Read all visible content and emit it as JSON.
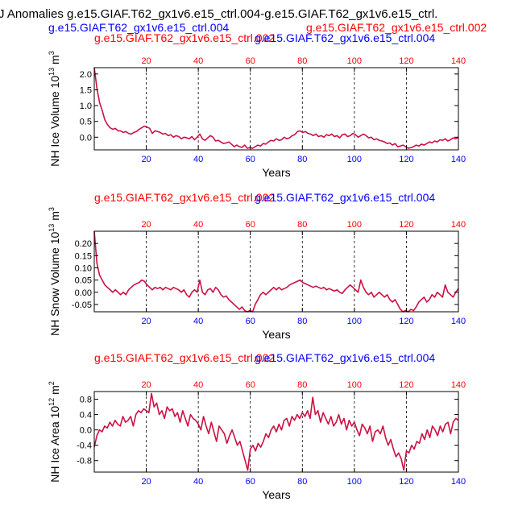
{
  "figure_title": "J Anomalies g.e15.GIAF.T62_gx1v6.e15_ctrl.004-g.e15.GIAF.T62_gx1v6.e15_ctrl.",
  "colors": {
    "blue_run": "#0000ff",
    "red_run": "#ff0000",
    "line": "#cc1144",
    "grid": "#000000"
  },
  "chart_data": [
    {
      "type": "line",
      "ylabel": "NH Ice Volume 10",
      "ylabel_exp": "13",
      "ylabel_unit": " m",
      "ylabel_unit_exp": "3",
      "xlabel": "Years",
      "case_blue": "g.e15.GIAF.T62_gx1v6.e15_ctrl.004",
      "case_red": "g.e15.GIAF.T62_gx1v6.e15_ctrl.002",
      "case_red_overflow": "g.e15.GIAF.T62_gx1v6.e15_ctrl.002",
      "layout_variant": "first",
      "xlim": [
        0,
        140
      ],
      "ylim": [
        -0.4,
        2.2
      ],
      "yticks": [
        -0.0,
        0.5,
        1.0,
        1.5,
        2.0
      ],
      "ytick_labels": [
        "0.0",
        "0.5",
        "1.0",
        "1.5",
        "2.0"
      ],
      "xticks": [
        20,
        40,
        60,
        80,
        100,
        120,
        140
      ],
      "vgrid": [
        20,
        40,
        60,
        80,
        100,
        120
      ],
      "series": [
        {
          "values": [
            2.2,
            1.55,
            1.1,
            0.85,
            0.55,
            0.4,
            0.3,
            0.25,
            0.28,
            0.2,
            0.2,
            0.15,
            0.18,
            0.12,
            0.1,
            0.15,
            0.18,
            0.25,
            0.3,
            0.35,
            0.32,
            0.28,
            0.12,
            0.2,
            0.18,
            0.15,
            0.1,
            0.12,
            0.05,
            0.08,
            0.0,
            0.05,
            0.02,
            -0.05,
            0.0,
            -0.02,
            -0.05,
            0.02,
            -0.08,
            0.0,
            0.1,
            -0.05,
            -0.1,
            -0.02,
            0.05,
            0.0,
            -0.12,
            -0.1,
            -0.15,
            -0.2,
            -0.18,
            -0.15,
            -0.22,
            -0.3,
            -0.25,
            -0.3,
            -0.32,
            -0.25,
            -0.35,
            -0.33,
            -0.35,
            -0.3,
            -0.25,
            -0.28,
            -0.2,
            -0.22,
            -0.15,
            -0.1,
            -0.12,
            -0.05,
            -0.1,
            -0.08,
            0.0,
            -0.05,
            -0.02,
            0.05,
            0.08,
            0.18,
            0.2,
            0.15,
            0.18,
            0.12,
            0.1,
            0.05,
            0.1,
            0.02,
            0.05,
            0.0,
            0.08,
            0.05,
            0.1,
            0.02,
            0.05,
            -0.02,
            0.08,
            0.1,
            0.02,
            0.05,
            0.12,
            0.08,
            0.0,
            0.05,
            0.1,
            0.05,
            -0.02,
            0.0,
            -0.08,
            -0.05,
            -0.1,
            -0.12,
            -0.15,
            -0.2,
            -0.18,
            -0.25,
            -0.2,
            -0.3,
            -0.28,
            -0.25,
            -0.3,
            -0.35,
            -0.33,
            -0.3,
            -0.25,
            -0.28,
            -0.22,
            -0.25,
            -0.2,
            -0.15,
            -0.18,
            -0.12,
            -0.15,
            -0.08,
            -0.1,
            -0.05,
            -0.12,
            -0.08,
            -0.02,
            -0.05,
            0.0
          ]
        }
      ]
    },
    {
      "type": "line",
      "ylabel": "NH Snow Volume 10",
      "ylabel_exp": "13",
      "ylabel_unit": " m",
      "ylabel_unit_exp": "3",
      "xlabel": "Years",
      "case_blue": "g.e15.GIAF.T62_gx1v6.e15_ctrl.004",
      "case_red": "g.e15.GIAF.T62_gx1v6.e15_ctrl.002",
      "layout_variant": "normal",
      "xlim": [
        0,
        140
      ],
      "ylim": [
        -0.08,
        0.25
      ],
      "yticks": [
        -0.05,
        0.0,
        0.05,
        0.1,
        0.15,
        0.2
      ],
      "ytick_labels": [
        "-0.05",
        "0.00",
        "0.05",
        "0.10",
        "0.15",
        "0.20"
      ],
      "xticks": [
        20,
        40,
        60,
        80,
        100,
        120,
        140
      ],
      "vgrid": [
        20,
        40,
        60,
        80,
        100,
        120
      ],
      "series": [
        {
          "values": [
            0.25,
            0.12,
            0.07,
            0.05,
            0.03,
            0.02,
            0.01,
            0.0,
            0.01,
            0.0,
            -0.01,
            0.0,
            -0.01,
            0.01,
            0.02,
            0.03,
            0.035,
            0.04,
            0.05,
            0.045,
            0.03,
            0.02,
            0.01,
            0.02,
            0.015,
            0.02,
            0.01,
            0.02,
            0.015,
            0.01,
            0.02,
            0.015,
            0.01,
            0.0,
            0.01,
            -0.01,
            -0.02,
            0.0,
            0.01,
            0.0,
            0.05,
            0.0,
            -0.01,
            0.01,
            0.015,
            0.0,
            0.02,
            0.01,
            -0.01,
            -0.02,
            -0.015,
            -0.03,
            -0.04,
            -0.05,
            -0.06,
            -0.07,
            -0.06,
            -0.075,
            -0.08,
            -0.075,
            -0.08,
            -0.05,
            -0.03,
            -0.01,
            0.0,
            -0.01,
            0.0,
            0.01,
            0.02,
            0.01,
            0.02,
            0.01,
            0.015,
            0.02,
            0.03,
            0.035,
            0.04,
            0.045,
            0.05,
            0.04,
            0.035,
            0.03,
            0.025,
            0.02,
            0.025,
            0.02,
            0.015,
            0.02,
            0.01,
            0.015,
            0.01,
            0.005,
            0.01,
            0.0,
            -0.005,
            0.01,
            0.02,
            0.03,
            0.02,
            0.01,
            0.0,
            0.05,
            0.02,
            0.0,
            -0.01,
            0.0,
            -0.02,
            -0.01,
            0.0,
            -0.01,
            -0.02,
            -0.01,
            -0.03,
            -0.04,
            -0.03,
            -0.05,
            -0.07,
            -0.08,
            -0.075,
            -0.08,
            -0.07,
            -0.075,
            -0.06,
            -0.04,
            -0.03,
            -0.02,
            -0.04,
            -0.03,
            -0.01,
            -0.02,
            0.0,
            -0.01,
            -0.02,
            0.03,
            0.0,
            -0.01,
            -0.02,
            0.0,
            0.015
          ]
        }
      ]
    },
    {
      "type": "line",
      "ylabel": "NH Ice Area 10",
      "ylabel_exp": "12",
      "ylabel_unit": " m",
      "ylabel_unit_exp": "2",
      "xlabel": "Years",
      "case_blue": "g.e15.GIAF.T62_gx1v6.e15_ctrl.004",
      "case_red": "g.e15.GIAF.T62_gx1v6.e15_ctrl.002",
      "layout_variant": "normal",
      "xlim": [
        0,
        140
      ],
      "ylim": [
        -1.1,
        1.0
      ],
      "yticks": [
        -0.8,
        -0.4,
        0.0,
        0.4,
        0.8
      ],
      "ytick_labels": [
        "-0.8",
        "-0.4",
        "0.0",
        "0.4",
        "0.8"
      ],
      "xticks": [
        20,
        40,
        60,
        80,
        100,
        120,
        140
      ],
      "vgrid": [
        20,
        40,
        60,
        80,
        100,
        120
      ],
      "series": [
        {
          "values": [
            -0.45,
            -0.15,
            0.0,
            -0.05,
            0.1,
            0.05,
            0.2,
            0.1,
            0.25,
            0.15,
            0.1,
            0.35,
            0.2,
            0.25,
            0.35,
            0.1,
            0.4,
            0.5,
            0.45,
            0.55,
            0.5,
            0.45,
            0.95,
            0.6,
            0.7,
            0.4,
            0.5,
            0.3,
            0.6,
            0.5,
            0.55,
            0.35,
            0.45,
            0.2,
            0.5,
            0.3,
            0.1,
            0.4,
            0.3,
            0.25,
            0.15,
            0.0,
            0.35,
            0.1,
            -0.1,
            0.2,
            -0.05,
            -0.3,
            0.1,
            0.0,
            -0.1,
            -0.35,
            -0.15,
            0.0,
            -0.2,
            -0.4,
            -0.3,
            -0.55,
            -0.8,
            -1.05,
            -0.5,
            -0.4,
            -0.55,
            -0.35,
            -0.45,
            -0.3,
            -0.1,
            -0.2,
            0.0,
            0.1,
            -0.05,
            0.15,
            0.0,
            0.25,
            0.3,
            0.1,
            0.35,
            0.25,
            0.4,
            0.3,
            0.45,
            0.35,
            0.5,
            0.3,
            0.85,
            0.4,
            0.5,
            0.2,
            0.45,
            0.3,
            0.15,
            0.35,
            0.1,
            0.2,
            0.4,
            0.15,
            0.3,
            0.0,
            0.25,
            0.1,
            0.2,
            0.0,
            -0.15,
            0.15,
            0.05,
            -0.1,
            0.1,
            -0.3,
            -0.05,
            0.0,
            -0.1,
            0.1,
            -0.2,
            -0.4,
            -0.25,
            -0.5,
            -0.7,
            -0.6,
            -0.75,
            -1.05,
            -0.55,
            -0.6,
            -0.4,
            -0.5,
            -0.3,
            -0.35,
            -0.1,
            -0.25,
            0.0,
            -0.2,
            0.1,
            0.0,
            -0.15,
            0.1,
            -0.05,
            0.15,
            0.2,
            -0.1,
            0.2,
            0.3,
            0.25
          ]
        }
      ]
    }
  ]
}
